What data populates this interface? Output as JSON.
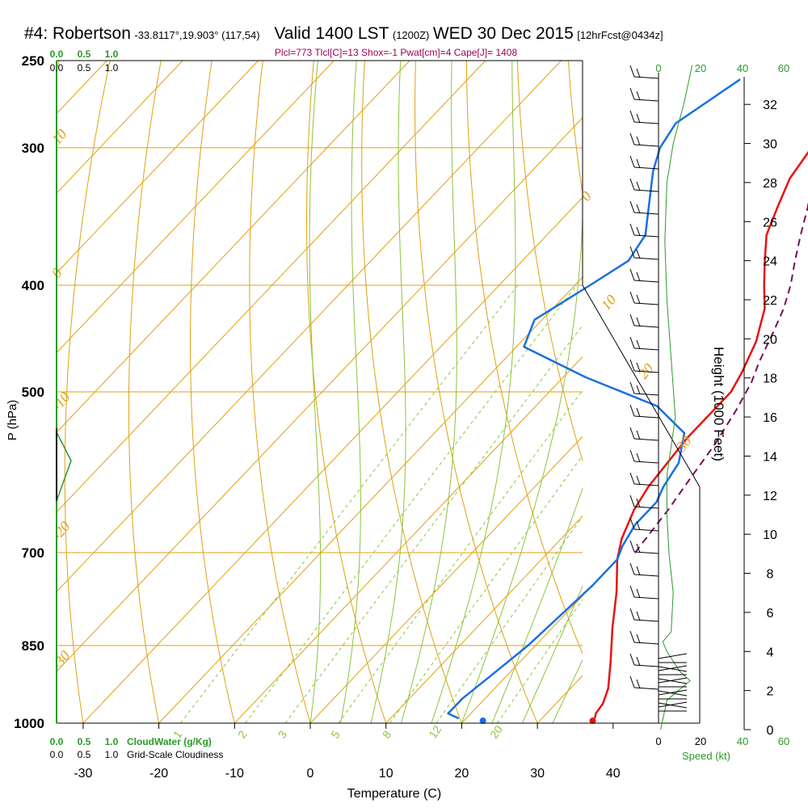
{
  "header": {
    "station": "#4: Robertson",
    "coords": "-33.8117°,19.903° (117,54)",
    "valid": "Valid 1400 LST",
    "zulu": "(1200Z)",
    "date": "WED 30 Dec 2015",
    "forecast": "[12hrFcst@0434z]",
    "params": "Plcl=773 Tlcl[C]=13 Shox=-1 Pwat[cm]=4 Cape[J]= 1408"
  },
  "colors": {
    "temperature": "#e8120e",
    "dewpoint": "#1a6fe0",
    "parcel": "#7a0a5c",
    "isotherm": "#e0a010",
    "dry_adiabat": "#e0a010",
    "moist_adiabat": "#8cc43a",
    "mixing_ratio": "#8cc43a",
    "cloud": "#2a9a2a",
    "wind_speed": "#2a9a2a"
  },
  "chart_data": {
    "type": "line",
    "xlabel": "Temperature (C)",
    "ylabel": "P (hPa)",
    "y2label": "Height (1000 Feet)",
    "x_ticks": [
      -30,
      -20,
      -10,
      0,
      10,
      20,
      30,
      40
    ],
    "x_tick_labels": [
      "-30",
      "-20",
      "-10",
      "0",
      "10",
      "20",
      "30",
      "40"
    ],
    "p_ticks": [
      250,
      300,
      400,
      500,
      700,
      850,
      1000
    ],
    "p_tick_labels": [
      "250",
      "300",
      "400",
      "500",
      "700",
      "850",
      "1000"
    ],
    "height_ticks": [
      0,
      2,
      4,
      6,
      8,
      10,
      12,
      14,
      16,
      18,
      20,
      22,
      24,
      26,
      28,
      30,
      32
    ],
    "height_tick_labels": [
      "0",
      "2",
      "4",
      "6",
      "8",
      "10",
      "12",
      "14",
      "16",
      "18",
      "20",
      "22",
      "24",
      "26",
      "28",
      "30",
      "32"
    ],
    "xlim": [
      -35,
      48
    ],
    "plim": [
      250,
      1000
    ],
    "series": [
      {
        "kind": "temperature",
        "points": [
          [
            37,
            990
          ],
          [
            36.5,
            980
          ],
          [
            36.2,
            960
          ],
          [
            35,
            930
          ],
          [
            32,
            880
          ],
          [
            28,
            820
          ],
          [
            24,
            760
          ],
          [
            20,
            710
          ],
          [
            18,
            680
          ],
          [
            16,
            640
          ],
          [
            15,
            610
          ],
          [
            14.5,
            580
          ],
          [
            14,
            550
          ],
          [
            14,
            530
          ],
          [
            14,
            510
          ],
          [
            14,
            500
          ],
          [
            13,
            480
          ],
          [
            11,
            450
          ],
          [
            8,
            420
          ],
          [
            5,
            400
          ],
          [
            2,
            380
          ],
          [
            -1,
            360
          ],
          [
            -3,
            340
          ],
          [
            -5,
            320
          ],
          [
            -6,
            300
          ],
          [
            -7,
            290
          ],
          [
            -8,
            280
          ],
          [
            -9,
            270
          ],
          [
            -10,
            260
          ]
        ]
      },
      {
        "kind": "dewpoint",
        "points": [
          [
            19,
            990
          ],
          [
            18,
            985
          ],
          [
            17,
            980
          ],
          [
            17,
            950
          ],
          [
            18,
            900
          ],
          [
            19,
            850
          ],
          [
            19.5,
            800
          ],
          [
            20,
            750
          ],
          [
            20,
            710
          ],
          [
            19,
            690
          ],
          [
            18,
            660
          ],
          [
            18,
            630
          ],
          [
            17,
            610
          ],
          [
            16,
            580
          ],
          [
            13,
            545
          ],
          [
            6,
            515
          ],
          [
            -7,
            485
          ],
          [
            -19,
            455
          ],
          [
            -21,
            430
          ],
          [
            -18,
            400
          ],
          [
            -16,
            380
          ],
          [
            -17,
            360
          ],
          [
            -20,
            340
          ],
          [
            -24,
            315
          ],
          [
            -26,
            300
          ],
          [
            -27,
            285
          ],
          [
            -24,
            260
          ]
        ]
      },
      {
        "kind": "parcel",
        "points": [
          [
            21.5,
            700
          ],
          [
            21,
            670
          ],
          [
            20.5,
            640
          ],
          [
            19.5,
            600
          ],
          [
            18.5,
            560
          ],
          [
            17,
            520
          ],
          [
            15.5,
            490
          ],
          [
            14,
            470
          ],
          [
            12,
            440
          ],
          [
            10.5,
            420
          ],
          [
            8.5,
            400
          ],
          [
            6,
            380
          ],
          [
            3.5,
            360
          ],
          [
            1,
            340
          ],
          [
            -2,
            320
          ],
          [
            -5,
            300
          ],
          [
            -8,
            280
          ],
          [
            -11,
            262
          ]
        ]
      }
    ],
    "isotherm_labels": [
      "10",
      "0",
      "-10",
      "-20",
      "-30",
      "0",
      "10",
      "20",
      "30"
    ],
    "mixing_ratio_labels": [
      "1",
      "2",
      "3",
      "5",
      "8",
      "12",
      "20"
    ],
    "markers": [
      {
        "kind": "dewpoint",
        "x": 22.5,
        "p": 995
      },
      {
        "kind": "temperature",
        "x": 37,
        "p": 995
      }
    ],
    "wind_speed_axis": {
      "label": "Speed (kt)",
      "ticks": [
        "0",
        "20",
        "40",
        "60"
      ]
    },
    "cloud_axis_top": {
      "cloudwater_ticks": [
        "0.0",
        "0.5",
        "1.0"
      ],
      "cloudiness_ticks": [
        "0.0",
        "0.5",
        "1.0"
      ]
    },
    "cloud_axis_bottom": {
      "cloudwater_ticks": [
        "0.0",
        "0.5",
        "1.0"
      ],
      "cloudiness_ticks": [
        "0.0",
        "0.5",
        "1.0"
      ],
      "cloudwater_label": "CloudWater (g/Kg)",
      "cloudiness_label": "Grid-Scale Cloudiness"
    },
    "wind_speed_profile": [
      [
        1,
        0
      ],
      [
        4,
        1.5
      ],
      [
        15,
        2.5
      ],
      [
        10,
        3
      ],
      [
        4,
        4
      ],
      [
        2,
        4.5
      ],
      [
        6,
        5
      ],
      [
        7,
        7
      ],
      [
        5,
        9
      ],
      [
        4,
        11
      ],
      [
        4,
        13
      ],
      [
        6,
        14.5
      ],
      [
        8,
        16
      ],
      [
        6,
        19
      ],
      [
        4,
        22
      ],
      [
        3,
        25
      ],
      [
        4,
        28
      ],
      [
        7,
        30
      ],
      [
        12,
        32
      ],
      [
        16,
        34
      ]
    ]
  }
}
